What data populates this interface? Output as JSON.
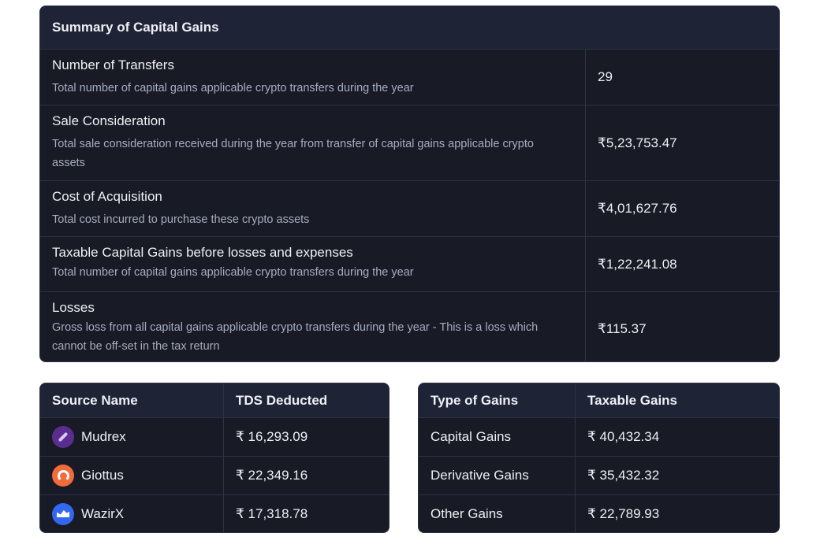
{
  "summary": {
    "title": "Summary of Capital Gains",
    "rows": [
      {
        "title": "Number of Transfers",
        "desc": "Total number of capital gains applicable crypto transfers during the year",
        "value": "29"
      },
      {
        "title": "Sale Consideration",
        "desc": "Total sale consideration received during the year from transfer of capital gains applicable crypto assets",
        "value": "₹5,23,753.47"
      },
      {
        "title": "Cost of Acquisition",
        "desc": "Total cost incurred to purchase these crypto assets",
        "value": "₹4,01,627.76"
      },
      {
        "title": "Taxable Capital Gains before losses and expenses",
        "desc": "Total number of capital gains applicable crypto transfers during the year",
        "value": "₹1,22,241.08"
      },
      {
        "title": "Losses",
        "desc": "Gross loss from all capital gains applicable crypto transfers during the year - This is a loss which cannot be off-set in the tax return",
        "value": "₹115.37"
      }
    ]
  },
  "tds": {
    "headers": [
      "Source Name",
      "TDS Deducted"
    ],
    "rows": [
      {
        "name": "Mudrex",
        "value": "₹ 16,293.09",
        "icon": "mudrex-logo-icon",
        "color": "#5b2d91"
      },
      {
        "name": "Giottus",
        "value": "₹ 22,349.16",
        "icon": "giottus-logo-icon",
        "color": "#f26b3a"
      },
      {
        "name": "WazirX",
        "value": "₹ 17,318.78",
        "icon": "wazirx-logo-icon",
        "color": "#3467f0"
      }
    ]
  },
  "gains": {
    "headers": [
      "Type of Gains",
      "Taxable Gains"
    ],
    "rows": [
      {
        "type": "Capital Gains",
        "value": "₹ 40,432.34"
      },
      {
        "type": "Derivative Gains",
        "value": "₹ 35,432.32"
      },
      {
        "type": "Other Gains",
        "value": "₹ 22,789.93"
      }
    ]
  }
}
